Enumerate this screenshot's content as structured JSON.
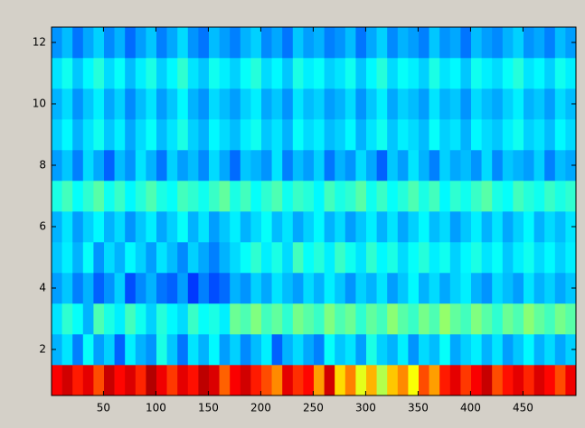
{
  "chart_data": {
    "type": "heatmap",
    "colormap": "jet",
    "clim": [
      0,
      1
    ],
    "xlim": [
      0.5,
      500.5
    ],
    "ylim": [
      0.5,
      12.5
    ],
    "xticks": [
      50,
      100,
      150,
      200,
      250,
      300,
      350,
      400,
      450
    ],
    "yticks": [
      2,
      4,
      6,
      8,
      10,
      12
    ],
    "y": [
      1,
      2,
      3,
      4,
      5,
      6,
      7,
      8,
      9,
      10,
      11,
      12
    ],
    "values": [
      [
        0.88,
        0.92,
        0.85,
        0.9,
        0.8,
        0.93,
        0.87,
        0.91,
        0.84,
        0.95,
        0.89,
        0.82,
        0.9,
        0.86,
        0.94,
        0.91,
        0.78,
        0.88,
        0.92,
        0.85,
        0.8,
        0.74,
        0.9,
        0.83,
        0.87,
        0.72,
        0.92,
        0.66,
        0.75,
        0.6,
        0.7,
        0.55,
        0.68,
        0.74,
        0.62,
        0.8,
        0.72,
        0.85,
        0.9,
        0.82,
        0.88,
        0.93,
        0.8,
        0.86,
        0.9,
        0.84,
        0.91,
        0.87,
        0.8,
        0.89
      ],
      [
        0.3,
        0.35,
        0.25,
        0.38,
        0.28,
        0.33,
        0.22,
        0.36,
        0.3,
        0.27,
        0.4,
        0.32,
        0.24,
        0.35,
        0.3,
        0.37,
        0.28,
        0.33,
        0.26,
        0.31,
        0.36,
        0.22,
        0.3,
        0.34,
        0.29,
        0.25,
        0.38,
        0.32,
        0.35,
        0.28,
        0.4,
        0.33,
        0.3,
        0.36,
        0.27,
        0.34,
        0.31,
        0.38,
        0.29,
        0.33,
        0.36,
        0.3,
        0.35,
        0.28,
        0.32,
        0.37,
        0.3,
        0.34,
        0.29,
        0.33
      ],
      [
        0.35,
        0.42,
        0.38,
        0.3,
        0.45,
        0.4,
        0.36,
        0.44,
        0.39,
        0.33,
        0.41,
        0.37,
        0.34,
        0.43,
        0.38,
        0.4,
        0.36,
        0.48,
        0.45,
        0.5,
        0.44,
        0.47,
        0.42,
        0.49,
        0.46,
        0.43,
        0.5,
        0.45,
        0.48,
        0.42,
        0.47,
        0.44,
        0.51,
        0.46,
        0.43,
        0.49,
        0.45,
        0.52,
        0.47,
        0.44,
        0.5,
        0.46,
        0.42,
        0.48,
        0.45,
        0.51,
        0.47,
        0.44,
        0.49,
        0.46
      ],
      [
        0.28,
        0.32,
        0.25,
        0.3,
        0.22,
        0.27,
        0.33,
        0.2,
        0.26,
        0.3,
        0.24,
        0.22,
        0.28,
        0.18,
        0.25,
        0.2,
        0.23,
        0.3,
        0.27,
        0.33,
        0.29,
        0.35,
        0.31,
        0.28,
        0.34,
        0.3,
        0.36,
        0.32,
        0.27,
        0.33,
        0.3,
        0.35,
        0.28,
        0.32,
        0.37,
        0.3,
        0.34,
        0.29,
        0.33,
        0.36,
        0.3,
        0.27,
        0.34,
        0.31,
        0.28,
        0.35,
        0.3,
        0.33,
        0.29,
        0.32
      ],
      [
        0.32,
        0.36,
        0.3,
        0.38,
        0.27,
        0.34,
        0.3,
        0.37,
        0.33,
        0.28,
        0.35,
        0.31,
        0.26,
        0.33,
        0.29,
        0.25,
        0.3,
        0.34,
        0.38,
        0.42,
        0.36,
        0.4,
        0.34,
        0.44,
        0.38,
        0.41,
        0.36,
        0.43,
        0.39,
        0.35,
        0.42,
        0.37,
        0.4,
        0.34,
        0.38,
        0.41,
        0.36,
        0.39,
        0.33,
        0.37,
        0.4,
        0.35,
        0.38,
        0.32,
        0.36,
        0.39,
        0.34,
        0.37,
        0.33,
        0.36
      ],
      [
        0.3,
        0.35,
        0.28,
        0.33,
        0.37,
        0.3,
        0.34,
        0.27,
        0.32,
        0.36,
        0.29,
        0.33,
        0.38,
        0.3,
        0.35,
        0.28,
        0.32,
        0.36,
        0.3,
        0.34,
        0.38,
        0.31,
        0.35,
        0.29,
        0.33,
        0.37,
        0.3,
        0.34,
        0.28,
        0.32,
        0.36,
        0.3,
        0.35,
        0.29,
        0.33,
        0.37,
        0.31,
        0.34,
        0.28,
        0.32,
        0.36,
        0.3,
        0.35,
        0.29,
        0.33,
        0.37,
        0.3,
        0.34,
        0.31,
        0.35
      ],
      [
        0.4,
        0.44,
        0.38,
        0.42,
        0.46,
        0.39,
        0.43,
        0.37,
        0.41,
        0.45,
        0.4,
        0.38,
        0.44,
        0.42,
        0.39,
        0.43,
        0.47,
        0.4,
        0.44,
        0.38,
        0.42,
        0.45,
        0.39,
        0.43,
        0.41,
        0.37,
        0.44,
        0.4,
        0.42,
        0.46,
        0.39,
        0.43,
        0.38,
        0.41,
        0.45,
        0.4,
        0.44,
        0.37,
        0.42,
        0.39,
        0.43,
        0.46,
        0.4,
        0.38,
        0.44,
        0.41,
        0.39,
        0.43,
        0.4,
        0.42
      ],
      [
        0.28,
        0.32,
        0.25,
        0.34,
        0.29,
        0.22,
        0.31,
        0.27,
        0.35,
        0.3,
        0.24,
        0.33,
        0.28,
        0.31,
        0.26,
        0.34,
        0.29,
        0.23,
        0.32,
        0.3,
        0.27,
        0.35,
        0.25,
        0.31,
        0.28,
        0.33,
        0.24,
        0.3,
        0.27,
        0.34,
        0.29,
        0.22,
        0.32,
        0.28,
        0.35,
        0.3,
        0.25,
        0.33,
        0.29,
        0.31,
        0.27,
        0.34,
        0.26,
        0.32,
        0.3,
        0.28,
        0.33,
        0.25,
        0.31,
        0.29
      ],
      [
        0.33,
        0.37,
        0.3,
        0.35,
        0.39,
        0.32,
        0.36,
        0.29,
        0.34,
        0.38,
        0.31,
        0.35,
        0.4,
        0.33,
        0.3,
        0.37,
        0.34,
        0.31,
        0.36,
        0.39,
        0.32,
        0.35,
        0.3,
        0.38,
        0.34,
        0.36,
        0.31,
        0.33,
        0.37,
        0.3,
        0.35,
        0.39,
        0.32,
        0.36,
        0.34,
        0.31,
        0.38,
        0.33,
        0.35,
        0.3,
        0.37,
        0.34,
        0.32,
        0.36,
        0.39,
        0.33,
        0.35,
        0.31,
        0.37,
        0.34
      ],
      [
        0.3,
        0.34,
        0.27,
        0.32,
        0.36,
        0.29,
        0.33,
        0.26,
        0.31,
        0.35,
        0.28,
        0.32,
        0.37,
        0.3,
        0.27,
        0.34,
        0.31,
        0.28,
        0.33,
        0.36,
        0.29,
        0.32,
        0.27,
        0.35,
        0.31,
        0.33,
        0.28,
        0.3,
        0.34,
        0.27,
        0.32,
        0.36,
        0.29,
        0.33,
        0.31,
        0.28,
        0.35,
        0.3,
        0.32,
        0.27,
        0.34,
        0.31,
        0.29,
        0.33,
        0.36,
        0.3,
        0.32,
        0.28,
        0.34,
        0.31
      ],
      [
        0.35,
        0.39,
        0.32,
        0.37,
        0.41,
        0.34,
        0.38,
        0.31,
        0.36,
        0.4,
        0.33,
        0.37,
        0.42,
        0.35,
        0.32,
        0.39,
        0.36,
        0.33,
        0.38,
        0.41,
        0.34,
        0.37,
        0.32,
        0.4,
        0.36,
        0.38,
        0.33,
        0.35,
        0.39,
        0.32,
        0.37,
        0.41,
        0.34,
        0.38,
        0.36,
        0.33,
        0.4,
        0.35,
        0.37,
        0.32,
        0.39,
        0.36,
        0.34,
        0.38,
        0.41,
        0.35,
        0.37,
        0.33,
        0.39,
        0.36
      ],
      [
        0.27,
        0.31,
        0.24,
        0.29,
        0.33,
        0.26,
        0.3,
        0.23,
        0.28,
        0.32,
        0.25,
        0.29,
        0.34,
        0.27,
        0.24,
        0.31,
        0.28,
        0.25,
        0.3,
        0.33,
        0.26,
        0.29,
        0.24,
        0.32,
        0.28,
        0.3,
        0.25,
        0.27,
        0.31,
        0.24,
        0.29,
        0.33,
        0.26,
        0.3,
        0.28,
        0.25,
        0.32,
        0.27,
        0.29,
        0.24,
        0.31,
        0.28,
        0.26,
        0.3,
        0.33,
        0.27,
        0.29,
        0.25,
        0.31,
        0.28
      ]
    ]
  }
}
